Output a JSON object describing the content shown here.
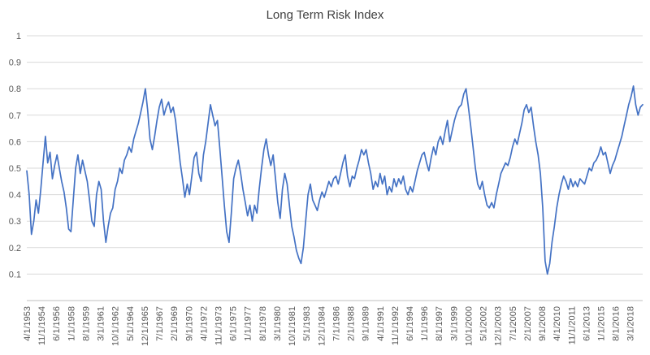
{
  "chart_data": {
    "type": "line",
    "title": "Long Term Risk Index",
    "legend": "none",
    "grid": "horizontal",
    "ylim": [
      0,
      1
    ],
    "y_ticks": [
      "1",
      "0.9",
      "0.8",
      "0.7",
      "0.6",
      "0.5",
      "0.4",
      "0.3",
      "0.2",
      "0.1"
    ],
    "x_tick_labels": [
      "4/1/1953",
      "11/1/1954",
      "6/1/1956",
      "1/1/1958",
      "8/1/1959",
      "3/1/1961",
      "10/1/1962",
      "5/1/1964",
      "12/1/1965",
      "7/1/1967",
      "2/1/1969",
      "9/1/1970",
      "4/1/1972",
      "11/1/1973",
      "6/1/1975",
      "1/1/1977",
      "8/1/1978",
      "3/1/1980",
      "10/1/1981",
      "5/1/1983",
      "12/1/1984",
      "7/1/1986",
      "2/1/1988",
      "9/1/1989",
      "4/1/1991",
      "11/1/1992",
      "6/1/1994",
      "1/1/1996",
      "8/1/1997",
      "3/1/1999",
      "10/1/2000",
      "5/1/2002",
      "12/1/2003",
      "7/1/2005",
      "2/1/2007",
      "9/1/2008",
      "4/1/2010",
      "11/1/2011",
      "6/1/2013",
      "1/1/2015",
      "8/1/2016",
      "3/1/2018"
    ],
    "x_start": 1953.25,
    "x_step_years": 0.25,
    "values": [
      0.49,
      0.4,
      0.25,
      0.3,
      0.38,
      0.33,
      0.42,
      0.52,
      0.62,
      0.52,
      0.56,
      0.46,
      0.51,
      0.55,
      0.5,
      0.45,
      0.41,
      0.35,
      0.27,
      0.26,
      0.38,
      0.5,
      0.55,
      0.48,
      0.53,
      0.49,
      0.45,
      0.38,
      0.3,
      0.28,
      0.4,
      0.45,
      0.42,
      0.3,
      0.22,
      0.28,
      0.33,
      0.35,
      0.42,
      0.45,
      0.5,
      0.48,
      0.53,
      0.55,
      0.58,
      0.56,
      0.61,
      0.64,
      0.67,
      0.71,
      0.75,
      0.8,
      0.72,
      0.61,
      0.57,
      0.62,
      0.68,
      0.73,
      0.76,
      0.7,
      0.73,
      0.75,
      0.71,
      0.73,
      0.68,
      0.6,
      0.52,
      0.46,
      0.39,
      0.44,
      0.4,
      0.47,
      0.54,
      0.56,
      0.48,
      0.45,
      0.55,
      0.6,
      0.67,
      0.74,
      0.7,
      0.66,
      0.68,
      0.58,
      0.47,
      0.36,
      0.26,
      0.22,
      0.33,
      0.46,
      0.5,
      0.53,
      0.48,
      0.42,
      0.37,
      0.32,
      0.36,
      0.3,
      0.36,
      0.33,
      0.42,
      0.5,
      0.57,
      0.61,
      0.55,
      0.51,
      0.55,
      0.46,
      0.37,
      0.31,
      0.42,
      0.48,
      0.44,
      0.36,
      0.28,
      0.24,
      0.19,
      0.16,
      0.14,
      0.2,
      0.3,
      0.4,
      0.44,
      0.38,
      0.36,
      0.34,
      0.38,
      0.41,
      0.39,
      0.42,
      0.45,
      0.43,
      0.46,
      0.47,
      0.44,
      0.48,
      0.52,
      0.55,
      0.47,
      0.43,
      0.47,
      0.46,
      0.5,
      0.53,
      0.57,
      0.55,
      0.57,
      0.52,
      0.48,
      0.42,
      0.45,
      0.43,
      0.48,
      0.44,
      0.47,
      0.4,
      0.43,
      0.41,
      0.46,
      0.43,
      0.46,
      0.44,
      0.47,
      0.42,
      0.4,
      0.43,
      0.41,
      0.45,
      0.49,
      0.52,
      0.55,
      0.56,
      0.52,
      0.49,
      0.54,
      0.58,
      0.55,
      0.6,
      0.62,
      0.59,
      0.64,
      0.68,
      0.6,
      0.64,
      0.68,
      0.71,
      0.73,
      0.74,
      0.78,
      0.8,
      0.73,
      0.66,
      0.58,
      0.5,
      0.44,
      0.42,
      0.45,
      0.4,
      0.36,
      0.35,
      0.37,
      0.35,
      0.4,
      0.44,
      0.48,
      0.5,
      0.52,
      0.51,
      0.54,
      0.58,
      0.61,
      0.59,
      0.63,
      0.67,
      0.72,
      0.74,
      0.71,
      0.73,
      0.66,
      0.6,
      0.55,
      0.48,
      0.35,
      0.15,
      0.1,
      0.14,
      0.22,
      0.28,
      0.35,
      0.4,
      0.44,
      0.47,
      0.45,
      0.42,
      0.46,
      0.43,
      0.45,
      0.43,
      0.46,
      0.45,
      0.44,
      0.47,
      0.5,
      0.49,
      0.52,
      0.53,
      0.55,
      0.58,
      0.55,
      0.56,
      0.52,
      0.48,
      0.51,
      0.53,
      0.56,
      0.59,
      0.62,
      0.66,
      0.7,
      0.74,
      0.77,
      0.81,
      0.74,
      0.7,
      0.73,
      0.74
    ],
    "colors": {
      "line": "#4472C4",
      "grid": "#D9D9D9",
      "axis": "#BFBFBF",
      "tick_text": "#595959",
      "title_text": "#404040"
    }
  }
}
